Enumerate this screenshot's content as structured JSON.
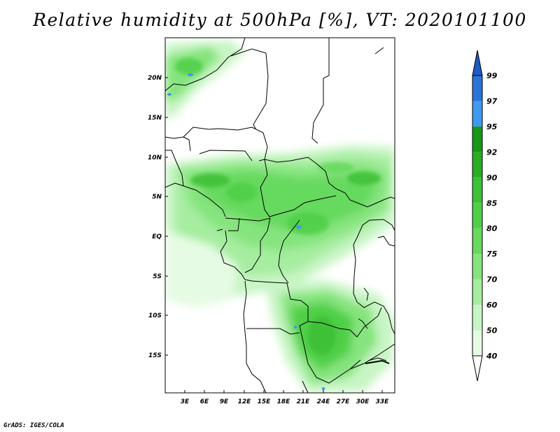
{
  "map": {
    "title": "Relative humidity at 500hPa [%], VT: 2020101100",
    "credit": "GrADS: IGES/COLA",
    "lat_labels": [
      "20N",
      "15N",
      "10N",
      "5N",
      "EQ",
      "5S",
      "10S",
      "15S"
    ],
    "lon_labels": [
      "3E",
      "6E",
      "9E",
      "12E",
      "15E",
      "18E",
      "21E",
      "24E",
      "27E",
      "30E",
      "33E"
    ],
    "colorbar": {
      "labels": [
        "99",
        "97",
        "95",
        "92",
        "90",
        "85",
        "80",
        "75",
        "70",
        "60",
        "50",
        "40"
      ],
      "colors": [
        "#ffffff",
        "#e6fbe4",
        "#c8f5c4",
        "#a6eda0",
        "#86e47e",
        "#66d95e",
        "#4fcf47",
        "#3dbf36",
        "#2aad24",
        "#1a9618",
        "#3d9aee",
        "#2a74d8",
        "#1d5cc4"
      ]
    }
  }
}
